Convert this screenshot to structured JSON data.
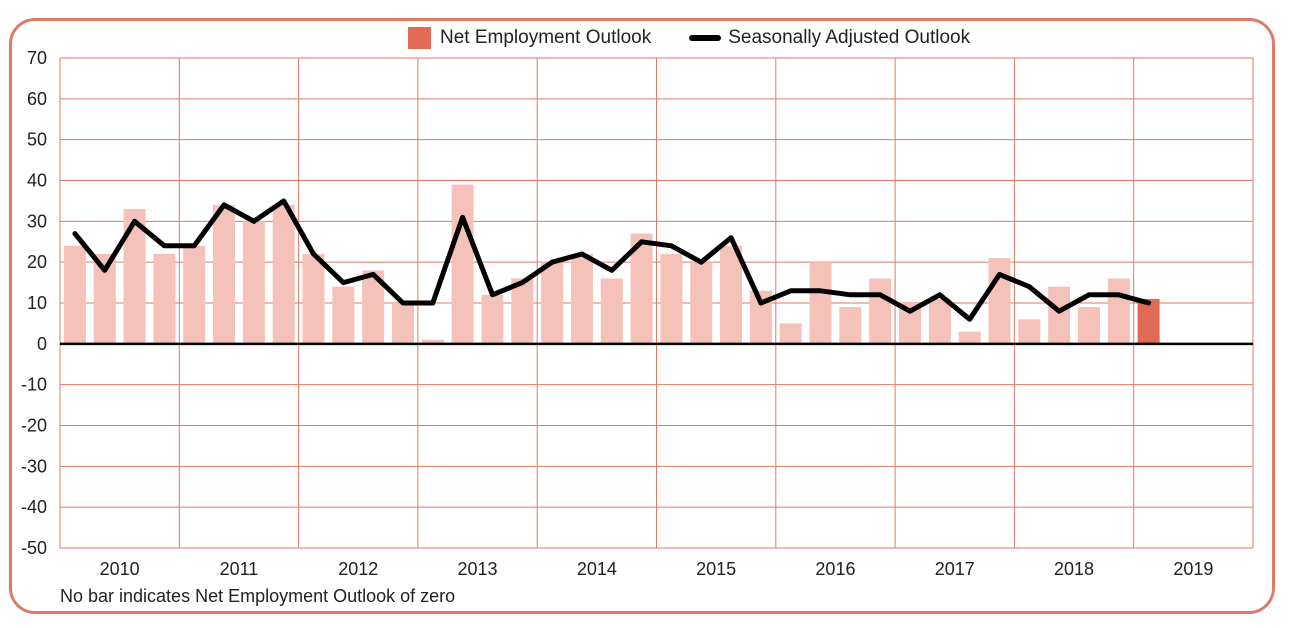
{
  "colors": {
    "frame": "#e07a66",
    "grid": "#e07a66",
    "bar": "#f4c2b8",
    "bar_highlight": "#e06a55",
    "line": "#000000"
  },
  "legend": {
    "bar_label": "Net Employment Outlook",
    "line_label": "Seasonally Adjusted Outlook"
  },
  "footnote": "No bar indicates Net Employment Outlook of zero",
  "chart_data": {
    "type": "bar",
    "ylim": [
      -50,
      70
    ],
    "yticks": [
      70,
      60,
      50,
      40,
      30,
      20,
      10,
      0,
      -10,
      -20,
      -30,
      -40,
      -50
    ],
    "years": [
      "2010",
      "2011",
      "2012",
      "2013",
      "2014",
      "2015",
      "2016",
      "2017",
      "2018",
      "2019"
    ],
    "quarters": [
      "2010 Q1",
      "2010 Q2",
      "2010 Q3",
      "2010 Q4",
      "2011 Q1",
      "2011 Q2",
      "2011 Q3",
      "2011 Q4",
      "2012 Q1",
      "2012 Q2",
      "2012 Q3",
      "2012 Q4",
      "2013 Q1",
      "2013 Q2",
      "2013 Q3",
      "2013 Q4",
      "2014 Q1",
      "2014 Q2",
      "2014 Q3",
      "2014 Q4",
      "2015 Q1",
      "2015 Q2",
      "2015 Q3",
      "2015 Q4",
      "2016 Q1",
      "2016 Q2",
      "2016 Q3",
      "2016 Q4",
      "2017 Q1",
      "2017 Q2",
      "2017 Q3",
      "2017 Q4",
      "2018 Q1",
      "2018 Q2",
      "2018 Q3",
      "2018 Q4",
      "2019 Q1"
    ],
    "series": [
      {
        "name": "Net Employment Outlook",
        "kind": "bar",
        "values": [
          24,
          22,
          33,
          22,
          24,
          34,
          30,
          34,
          22,
          14,
          18,
          10,
          1,
          39,
          12,
          16,
          20,
          22,
          16,
          27,
          22,
          20,
          24,
          13,
          5,
          20,
          9,
          16,
          10,
          11,
          3,
          21,
          6,
          14,
          9,
          16,
          11
        ]
      },
      {
        "name": "Seasonally Adjusted Outlook",
        "kind": "line",
        "values": [
          27,
          18,
          30,
          24,
          24,
          34,
          30,
          35,
          22,
          15,
          17,
          10,
          10,
          31,
          12,
          15,
          20,
          22,
          18,
          25,
          24,
          20,
          26,
          10,
          13,
          13,
          12,
          12,
          8,
          12,
          6,
          17,
          14,
          8,
          12,
          12,
          10
        ]
      }
    ]
  }
}
